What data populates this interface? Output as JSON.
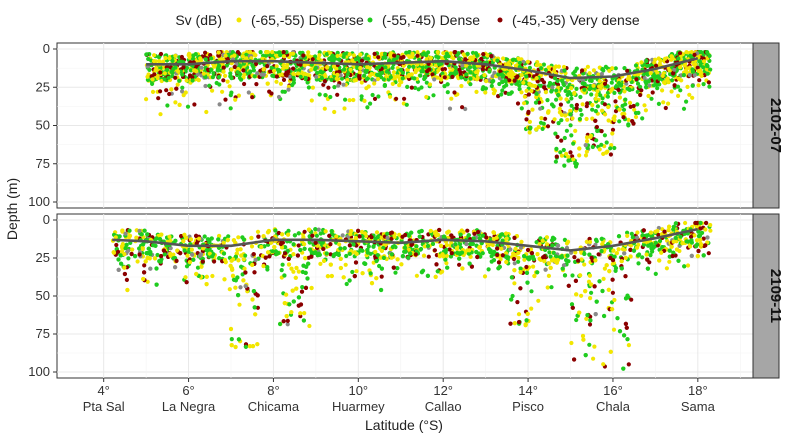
{
  "chart_data": {
    "type": "scatter",
    "title": "",
    "xlabel": "Latitude (°S)",
    "ylabel": "Depth (m)",
    "xlim": [
      2.9,
      19.3
    ],
    "ylim": [
      0,
      100
    ],
    "y_reversed": true,
    "yticks": [
      0,
      25,
      50,
      75,
      100
    ],
    "xticks": [
      {
        "value": 4,
        "label": "4°",
        "place": "Pta Sal"
      },
      {
        "value": 6,
        "label": "6°",
        "place": "La Negra"
      },
      {
        "value": 8,
        "label": "8°",
        "place": "Chicama"
      },
      {
        "value": 10,
        "label": "10°",
        "place": "Huarmey"
      },
      {
        "value": 12,
        "label": "12°",
        "place": "Callao"
      },
      {
        "value": 14,
        "label": "14°",
        "place": "Pisco"
      },
      {
        "value": 16,
        "label": "16°",
        "place": "Chala"
      },
      {
        "value": 18,
        "label": "18°",
        "place": "Sama"
      }
    ],
    "grid": true,
    "legend": {
      "title": "Sv (dB)",
      "position": "top",
      "items": [
        {
          "label": "(-65,-55) Disperse",
          "color": "#f2e600"
        },
        {
          "label": "(-55,-45) Dense",
          "color": "#1fcc1f"
        },
        {
          "label": "(-45,-35) Very dense",
          "color": "#8b0000"
        }
      ]
    },
    "colors": {
      "trend_line": "#555555",
      "strip_bg": "#a6a6a6",
      "grid": "#e8e8e8"
    },
    "panels": [
      {
        "label": "2102-07",
        "lat_range": [
          5.0,
          18.3
        ],
        "trend_line": [
          [
            5.0,
            10
          ],
          [
            6.0,
            10
          ],
          [
            7.0,
            8
          ],
          [
            8.0,
            8
          ],
          [
            9.0,
            9
          ],
          [
            10.0,
            10
          ],
          [
            11.0,
            9
          ],
          [
            12.0,
            8
          ],
          [
            13.0,
            10
          ],
          [
            14.0,
            14
          ],
          [
            15.0,
            19
          ],
          [
            16.0,
            18
          ],
          [
            17.0,
            13
          ],
          [
            18.0,
            6
          ]
        ],
        "deep_features": [
          {
            "lat": 14.3,
            "max_depth": 55
          },
          {
            "lat": 14.9,
            "max_depth": 78
          },
          {
            "lat": 15.7,
            "max_depth": 70
          },
          {
            "lat": 16.4,
            "max_depth": 50
          }
        ]
      },
      {
        "label": "2109-11",
        "lat_range": [
          4.2,
          18.3
        ],
        "trend_line": [
          [
            4.2,
            13
          ],
          [
            5.0,
            14
          ],
          [
            6.0,
            17
          ],
          [
            7.0,
            17
          ],
          [
            8.0,
            13
          ],
          [
            9.0,
            13
          ],
          [
            10.0,
            14
          ],
          [
            11.0,
            15
          ],
          [
            12.0,
            13
          ],
          [
            13.0,
            14
          ],
          [
            14.0,
            17
          ],
          [
            15.0,
            20
          ],
          [
            16.0,
            17
          ],
          [
            17.0,
            12
          ],
          [
            18.0,
            6
          ]
        ],
        "deep_features": [
          {
            "lat": 7.3,
            "max_depth": 85
          },
          {
            "lat": 8.5,
            "max_depth": 72
          },
          {
            "lat": 13.9,
            "max_depth": 72
          },
          {
            "lat": 15.3,
            "max_depth": 98
          },
          {
            "lat": 16.1,
            "max_depth": 98
          }
        ]
      }
    ]
  }
}
